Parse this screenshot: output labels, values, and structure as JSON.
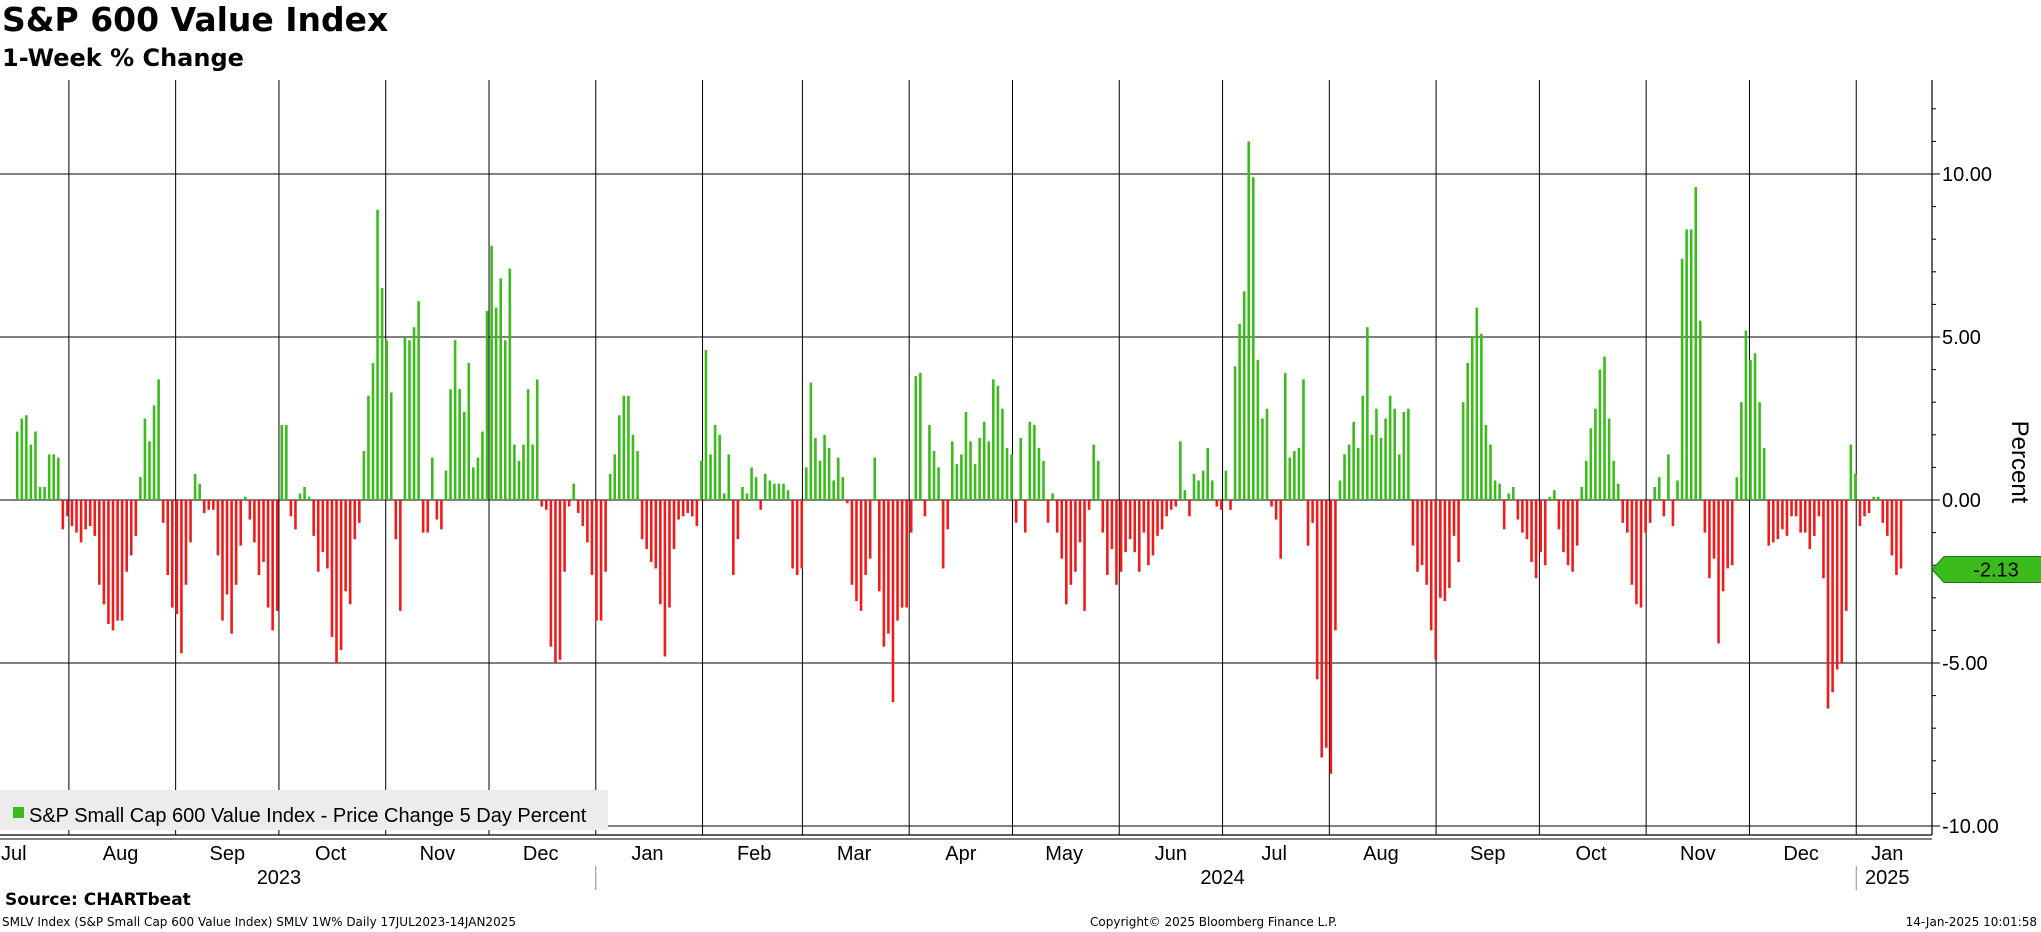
{
  "title": "S&P 600 Value Index",
  "subtitle": "1-Week % Change",
  "source": "Source: CHARTbeat",
  "footer": {
    "left": "SMLV Index (S&P Small Cap 600 Value Index) SMLV 1W%  Daily 17JUL2023-14JAN2025",
    "center": "Copyright© 2025 Bloomberg Finance L.P.",
    "right": "14-Jan-2025 10:01:58"
  },
  "chart_data": {
    "type": "bar",
    "x_range": [
      "2023-07-17",
      "2025-01-14"
    ],
    "ylabel": "Percent",
    "ylim": [
      -10.5,
      12.9
    ],
    "yticks": [
      10,
      5,
      0,
      -5,
      -10
    ],
    "ytick_labels": [
      "10.00",
      "5.00",
      "0.00",
      "-5.00",
      "-10.00"
    ],
    "grid": true,
    "colors": {
      "positive": "#3cbc1c",
      "negative": "#ee1c1c",
      "last_label_bg": "#3cbc1c"
    },
    "last_value": -2.13,
    "last_value_label": "-2.13",
    "legend": {
      "label": "S&P Small Cap 600 Value Index - Price Change 5 Day Percent",
      "position": "bottom-left"
    },
    "x_month_labels": [
      {
        "date": "2023-07-16",
        "label": "Jul"
      },
      {
        "date": "2023-08-16",
        "label": "Aug"
      },
      {
        "date": "2023-09-16",
        "label": "Sep"
      },
      {
        "date": "2023-10-16",
        "label": "Oct"
      },
      {
        "date": "2023-11-16",
        "label": "Nov"
      },
      {
        "date": "2023-12-16",
        "label": "Dec"
      },
      {
        "date": "2024-01-16",
        "label": "Jan"
      },
      {
        "date": "2024-02-16",
        "label": "Feb"
      },
      {
        "date": "2024-03-16",
        "label": "Mar"
      },
      {
        "date": "2024-04-16",
        "label": "Apr"
      },
      {
        "date": "2024-05-16",
        "label": "May"
      },
      {
        "date": "2024-06-16",
        "label": "Jun"
      },
      {
        "date": "2024-07-16",
        "label": "Jul"
      },
      {
        "date": "2024-08-16",
        "label": "Aug"
      },
      {
        "date": "2024-09-16",
        "label": "Sep"
      },
      {
        "date": "2024-10-16",
        "label": "Oct"
      },
      {
        "date": "2024-11-16",
        "label": "Nov"
      },
      {
        "date": "2024-12-16",
        "label": "Dec"
      },
      {
        "date": "2025-01-10",
        "label": "Jan"
      }
    ],
    "x_year_labels": [
      {
        "date": "2023-10-01",
        "label": "2023"
      },
      {
        "date": "2024-07-01",
        "label": "2024"
      },
      {
        "date": "2025-01-10",
        "label": "2025"
      }
    ],
    "values": [
      2.1,
      2.5,
      2.6,
      1.7,
      2.1,
      0.4,
      0.4,
      1.4,
      1.4,
      1.3,
      -0.9,
      -0.5,
      -0.8,
      -1.0,
      -1.3,
      -0.9,
      -0.8,
      -1.1,
      -2.6,
      -3.2,
      -3.8,
      -4.0,
      -3.7,
      -3.7,
      -2.2,
      -1.7,
      -1.1,
      0.7,
      2.5,
      1.8,
      2.9,
      3.7,
      -0.7,
      -2.3,
      -3.3,
      -3.5,
      -4.7,
      -2.6,
      -1.3,
      0.8,
      0.5,
      -0.4,
      -0.3,
      -0.3,
      -1.7,
      -3.7,
      -2.9,
      -4.1,
      -2.6,
      -1.4,
      0.1,
      -0.6,
      -1.3,
      -2.3,
      -1.9,
      -3.3,
      -4.0,
      -3.4,
      2.3,
      2.3,
      -0.5,
      -0.9,
      0.2,
      0.4,
      0.1,
      -1.1,
      -2.2,
      -1.6,
      -2.1,
      -4.2,
      -5.0,
      -4.6,
      -2.8,
      -3.2,
      -1.2,
      -0.7,
      1.5,
      3.2,
      4.2,
      8.9,
      6.5,
      4.9,
      3.3,
      -1.2,
      -3.4,
      5.0,
      4.9,
      5.3,
      6.1,
      -1.0,
      -1.0,
      1.3,
      -0.6,
      -0.9,
      0.9,
      3.4,
      4.9,
      3.4,
      2.7,
      4.2,
      1.0,
      1.3,
      2.1,
      5.8,
      7.8,
      5.9,
      6.8,
      4.9,
      7.1,
      1.7,
      1.2,
      1.7,
      3.4,
      1.7,
      3.7,
      -0.2,
      -0.3,
      -4.5,
      -5.0,
      -4.9,
      -2.2,
      -0.2,
      0.5,
      -0.4,
      -0.8,
      -1.3,
      -2.3,
      -3.7,
      -3.7,
      -2.2,
      0.8,
      1.4,
      2.6,
      3.2,
      3.2,
      2.0,
      1.5,
      -1.2,
      -1.5,
      -1.9,
      -2.1,
      -3.2,
      -4.8,
      -3.3,
      -1.5,
      -0.6,
      -0.5,
      -0.4,
      -0.5,
      -0.8,
      1.2,
      4.6,
      1.4,
      2.3,
      2.0,
      0.2,
      1.4,
      -2.3,
      -1.2,
      0.4,
      0.2,
      1.0,
      0.7,
      -0.3,
      0.8,
      0.6,
      0.5,
      0.5,
      0.5,
      0.3,
      -2.1,
      -2.3,
      -2.1,
      1.0,
      3.6,
      1.9,
      1.2,
      2.0,
      1.6,
      0.6,
      1.3,
      0.7,
      -0.1,
      -2.6,
      -3.1,
      -3.4,
      -2.3,
      -1.8,
      1.3,
      -2.8,
      -4.5,
      -4.1,
      -6.2,
      -3.7,
      -3.3,
      -3.3,
      -1.0,
      3.8,
      3.9,
      -0.5,
      2.3,
      1.5,
      1.0,
      -2.1,
      -0.9,
      1.8,
      1.1,
      1.4,
      2.7,
      1.8,
      1.1,
      1.9,
      2.4,
      1.8,
      3.7,
      3.5,
      2.8,
      1.6,
      1.4,
      -0.7,
      1.9,
      -1.0,
      2.4,
      2.3,
      1.6,
      1.2,
      -0.7,
      0.2,
      -1.0,
      -1.8,
      -3.2,
      -2.6,
      -2.2,
      -1.3,
      -3.4,
      -0.3,
      1.7,
      1.2,
      -1.0,
      -2.3,
      -1.5,
      -2.6,
      -2.2,
      -1.6,
      -1.2,
      -1.6,
      -2.2,
      -1.0,
      -2.0,
      -1.7,
      -1.1,
      -0.9,
      -0.5,
      -0.3,
      -0.2,
      1.8,
      0.3,
      -0.5,
      0.8,
      0.6,
      0.9,
      1.6,
      0.6,
      -0.2,
      -0.3,
      0.9,
      -0.3,
      4.1,
      5.4,
      6.4,
      11.0,
      9.9,
      4.3,
      2.5,
      2.8,
      -0.2,
      -0.6,
      -1.8,
      3.9,
      1.3,
      1.5,
      1.6,
      3.7,
      -1.4,
      -0.7,
      -5.5,
      -7.9,
      -7.6,
      -8.4,
      -4.0,
      0.6,
      1.4,
      1.7,
      2.4,
      1.6,
      3.2,
      5.3,
      2.0,
      2.8,
      1.9,
      2.5,
      3.2,
      2.8,
      1.4,
      2.7,
      2.8,
      -1.4,
      -2.2,
      -2.0,
      -2.6,
      -4.0,
      -4.9,
      -3.0,
      -3.1,
      -2.7,
      -1.1,
      -1.9,
      3.0,
      4.2,
      5.0,
      5.9,
      5.1,
      2.3,
      1.7,
      0.6,
      0.5,
      -0.9,
      0.2,
      0.4,
      -0.6,
      -1.0,
      -1.2,
      -1.9,
      -2.4,
      -1.6,
      -2.0,
      0.1,
      0.3,
      -0.9,
      -1.6,
      -2.0,
      -2.2,
      -1.4,
      0.4,
      1.2,
      2.2,
      2.8,
      4.0,
      4.4,
      2.5,
      1.2,
      0.5,
      -0.7,
      -1.0,
      -2.6,
      -3.2,
      -3.3,
      -1.0,
      -0.7,
      0.4,
      0.7,
      -0.5,
      1.4,
      -0.8,
      0.6,
      7.4,
      8.3,
      8.3,
      9.6,
      5.5,
      -1.0,
      -2.4,
      -1.8,
      -4.4,
      -2.8,
      -2.1,
      -2.0,
      0.7,
      3.0,
      5.2,
      4.3,
      4.5,
      3.0,
      1.6,
      -1.4,
      -1.3,
      -1.2,
      -0.9,
      -1.1,
      -0.5,
      -0.5,
      -1.0,
      -1.0,
      -1.5,
      -1.1,
      -0.5,
      -2.4,
      -6.4,
      -5.9,
      -5.2,
      -5.0,
      -3.4,
      1.7,
      0.8,
      -0.8,
      -0.5,
      -0.4,
      0.1,
      0.1,
      -0.7,
      -1.1,
      -1.7,
      -2.3,
      -2.1
    ]
  }
}
